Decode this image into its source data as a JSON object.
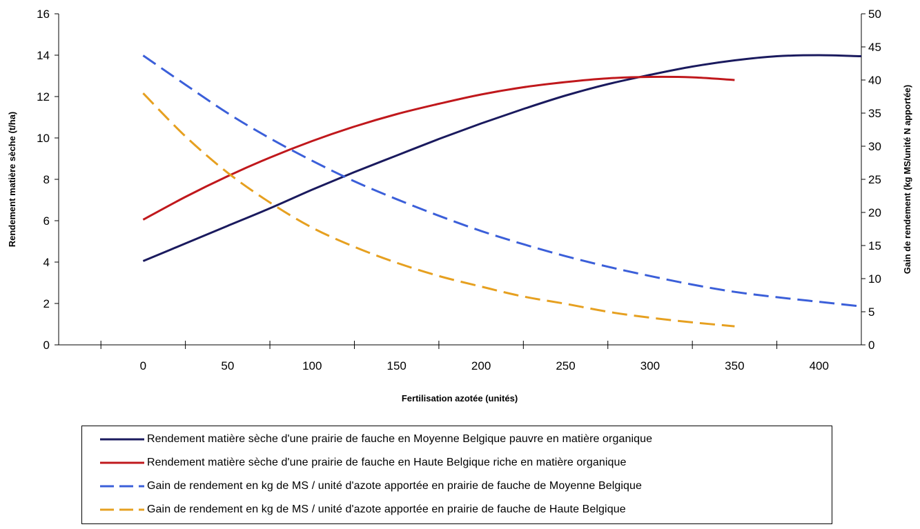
{
  "chart_data": {
    "type": "line",
    "title": "",
    "xlabel": "Fertilisation azotée (unités)",
    "ylabel_left": "Rendement matière sèche (t/ha)",
    "ylabel_right": "Gain de rendement (kg MS/unité N apportée)",
    "xlim": [
      -50,
      425
    ],
    "ylim_left": [
      0,
      16
    ],
    "ylim_right": [
      0,
      50
    ],
    "x_ticks": [
      0,
      50,
      100,
      150,
      200,
      250,
      300,
      350,
      400
    ],
    "y_left_ticks": [
      0,
      2,
      4,
      6,
      8,
      10,
      12,
      14,
      16
    ],
    "y_right_ticks": [
      0,
      5,
      10,
      15,
      20,
      25,
      30,
      35,
      40,
      45,
      50
    ],
    "grid": false,
    "legend_position": "bottom",
    "series": [
      {
        "name": "Rendement matière sèche d'une prairie de fauche en Moyenne Belgique  pauvre en matière organique",
        "axis": "left",
        "style": "solid",
        "color": "#1a1a5e",
        "x": [
          0,
          25,
          50,
          75,
          100,
          125,
          150,
          175,
          200,
          225,
          250,
          275,
          300,
          325,
          350,
          375,
          400,
          425
        ],
        "y": [
          4.05,
          4.9,
          5.75,
          6.6,
          7.5,
          8.35,
          9.15,
          9.95,
          10.7,
          11.4,
          12.05,
          12.6,
          13.05,
          13.45,
          13.75,
          13.95,
          14.0,
          13.95
        ]
      },
      {
        "name": "Rendement matière sèche d'une prairie de fauche en Haute Belgique  riche en matière organique",
        "axis": "left",
        "style": "solid",
        "color": "#c0181c",
        "x": [
          0,
          25,
          50,
          75,
          100,
          125,
          150,
          175,
          200,
          225,
          250,
          275,
          300,
          325,
          350
        ],
        "y": [
          6.05,
          7.15,
          8.15,
          9.05,
          9.85,
          10.55,
          11.15,
          11.65,
          12.1,
          12.45,
          12.7,
          12.88,
          12.95,
          12.93,
          12.8
        ]
      },
      {
        "name": "Gain de rendement  en kg de MS / unité d'azote  apportée  en prairie de fauche de Moyenne Belgique",
        "axis": "right",
        "style": "dashed",
        "color": "#3b5fd9",
        "x": [
          0,
          25,
          50,
          75,
          100,
          125,
          150,
          175,
          200,
          225,
          250,
          275,
          300,
          325,
          350,
          375,
          400,
          425
        ],
        "y": [
          43.7,
          39.3,
          35.0,
          31.2,
          27.8,
          24.7,
          22.0,
          19.5,
          17.2,
          15.2,
          13.4,
          11.8,
          10.4,
          9.1,
          8.0,
          7.2,
          6.5,
          5.8
        ]
      },
      {
        "name": "Gain de rendement  en kg de MS / unité d'azote  apportée  en prairie de fauche de Haute Belgique",
        "axis": "right",
        "style": "dashed",
        "color": "#e6a020",
        "x": [
          0,
          25,
          50,
          75,
          100,
          125,
          150,
          175,
          200,
          225,
          250,
          275,
          300,
          325,
          350
        ],
        "y": [
          38.0,
          31.5,
          26.0,
          21.5,
          17.7,
          14.8,
          12.4,
          10.4,
          8.8,
          7.3,
          6.2,
          5.0,
          4.1,
          3.4,
          2.8
        ]
      }
    ]
  }
}
